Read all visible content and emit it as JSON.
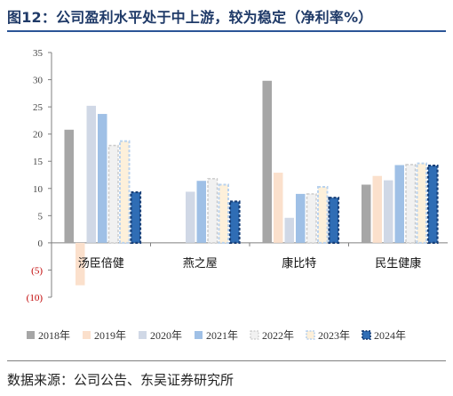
{
  "title": "图12：公司盈利水平处于中上游，较为稳定（净利率%）",
  "source": "数据来源：公司公告、东吴证券研究所",
  "chart_data": {
    "type": "bar",
    "title": "图12：公司盈利水平处于中上游，较为稳定（净利率%）",
    "ylabel": "",
    "xlabel": "",
    "ylim": [
      -10,
      35
    ],
    "yticks": [
      35,
      30,
      25,
      20,
      15,
      10,
      5,
      0,
      -5,
      -10
    ],
    "ytick_labels": [
      "35",
      "30",
      "25",
      "20",
      "15",
      "10",
      "5",
      "0",
      "(5)",
      "(10)"
    ],
    "categories": [
      "汤臣倍健",
      "燕之屋",
      "康比特",
      "民生健康"
    ],
    "series": [
      {
        "name": "2018年",
        "values": [
          20.8,
          null,
          29.8,
          10.7
        ],
        "color": "#a6a6a6",
        "style": "solid"
      },
      {
        "name": "2019年",
        "values": [
          -7.8,
          null,
          12.9,
          12.3
        ],
        "color": "#fbe0cc",
        "style": "solid"
      },
      {
        "name": "2020年",
        "values": [
          25.2,
          9.4,
          4.6,
          11.5
        ],
        "color": "#d0d8e6",
        "style": "solid"
      },
      {
        "name": "2021年",
        "values": [
          23.7,
          11.4,
          9.0,
          14.3
        ],
        "color": "#9fc0e6",
        "style": "solid"
      },
      {
        "name": "2022年",
        "values": [
          17.9,
          11.8,
          9.0,
          14.4
        ],
        "color": "#f1f1f1",
        "style": "dashed-light"
      },
      {
        "name": "2023年",
        "values": [
          18.7,
          10.7,
          10.3,
          14.6
        ],
        "color": "#fdf0da",
        "style": "dashed-blue"
      },
      {
        "name": "2024年",
        "values": [
          9.3,
          7.6,
          8.3,
          14.2
        ],
        "color": "#2f6db5",
        "style": "dashed-dark"
      }
    ],
    "legend": "bottom",
    "grid": false
  }
}
